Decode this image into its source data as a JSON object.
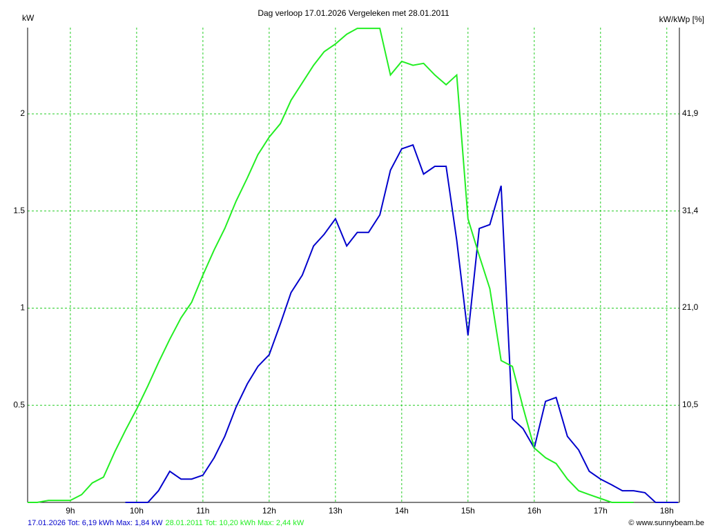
{
  "chart_data": {
    "type": "line",
    "title": "Dag  verloop 17.01.2026   Vergeleken met 28.01.2011",
    "y_label": "kW",
    "y2_label": "kW/kWp [%]",
    "credit": "© www.sunnybeam.be",
    "grid": true,
    "grid_color": "#22cc22",
    "xlim": [
      8.355,
      18.19
    ],
    "xticks": [
      {
        "value": 9,
        "label": "9h"
      },
      {
        "value": 10,
        "label": "10h"
      },
      {
        "value": 11,
        "label": "11h"
      },
      {
        "value": 12,
        "label": "12h"
      },
      {
        "value": 13,
        "label": "13h"
      },
      {
        "value": 14,
        "label": "14h"
      },
      {
        "value": 15,
        "label": "15h"
      },
      {
        "value": 16,
        "label": "16h"
      },
      {
        "value": 17,
        "label": "17h"
      },
      {
        "value": 18,
        "label": "18h"
      }
    ],
    "ylim": [
      0,
      2.444
    ],
    "yticks": [
      0.5,
      1,
      1.5,
      2
    ],
    "y2lim": [
      0,
      51.2
    ],
    "y2ticks": [
      {
        "value": 10.5,
        "label": "10,5"
      },
      {
        "value": 21.0,
        "label": "21,0"
      },
      {
        "value": 31.4,
        "label": "31,4"
      },
      {
        "value": 41.9,
        "label": "41,9"
      }
    ],
    "series": [
      {
        "name": "17.01.2026 Tot: 6,19 kWh Max: 1,84 kW",
        "color": "#0000cc",
        "x": [
          9.83,
          10.0,
          10.17,
          10.33,
          10.5,
          10.67,
          10.83,
          11.0,
          11.17,
          11.33,
          11.5,
          11.67,
          11.83,
          12.0,
          12.17,
          12.33,
          12.5,
          12.67,
          12.83,
          13.0,
          13.17,
          13.33,
          13.5,
          13.67,
          13.83,
          14.0,
          14.17,
          14.33,
          14.5,
          14.67,
          14.83,
          15.0,
          15.17,
          15.33,
          15.5,
          15.67,
          15.83,
          16.0,
          16.17,
          16.33,
          16.5,
          16.67,
          16.83,
          17.0,
          17.17,
          17.33,
          17.5,
          17.67,
          17.83,
          18.17
        ],
        "values": [
          0,
          0,
          0,
          0.06,
          0.16,
          0.12,
          0.12,
          0.14,
          0.23,
          0.34,
          0.49,
          0.61,
          0.7,
          0.76,
          0.92,
          1.08,
          1.17,
          1.32,
          1.38,
          1.46,
          1.32,
          1.39,
          1.39,
          1.48,
          1.71,
          1.82,
          1.84,
          1.69,
          1.73,
          1.73,
          1.35,
          0.86,
          1.41,
          1.43,
          1.63,
          0.43,
          0.38,
          0.28,
          0.52,
          0.54,
          0.34,
          0.27,
          0.16,
          0.12,
          0.09,
          0.06,
          0.06,
          0.05,
          0,
          0
        ]
      },
      {
        "name": "28.01.2011 Tot: 10,20 kWh Max: 2,44 kW",
        "color": "#22ee22",
        "x": [
          8.355,
          8.5,
          8.67,
          8.83,
          9.0,
          9.17,
          9.33,
          9.5,
          9.67,
          9.83,
          10.0,
          10.17,
          10.33,
          10.5,
          10.67,
          10.83,
          11.0,
          11.17,
          11.33,
          11.5,
          11.67,
          11.83,
          12.0,
          12.17,
          12.33,
          12.5,
          12.67,
          12.83,
          13.0,
          13.17,
          13.33,
          13.5,
          13.67,
          13.83,
          14.0,
          14.17,
          14.33,
          14.5,
          14.67,
          14.83,
          15.0,
          15.17,
          15.33,
          15.5,
          15.67,
          15.83,
          16.0,
          16.17,
          16.33,
          16.5,
          16.67,
          16.83,
          17.0,
          17.17,
          17.33,
          17.5
        ],
        "values": [
          0,
          0,
          0.01,
          0.01,
          0.01,
          0.04,
          0.1,
          0.13,
          0.26,
          0.37,
          0.48,
          0.6,
          0.72,
          0.84,
          0.95,
          1.03,
          1.17,
          1.3,
          1.41,
          1.55,
          1.67,
          1.79,
          1.88,
          1.95,
          2.07,
          2.16,
          2.25,
          2.32,
          2.36,
          2.41,
          2.44,
          2.44,
          2.44,
          2.2,
          2.27,
          2.25,
          2.26,
          2.2,
          2.15,
          2.2,
          1.46,
          1.27,
          1.1,
          0.73,
          0.7,
          0.49,
          0.28,
          0.23,
          0.2,
          0.12,
          0.06,
          0.04,
          0.02,
          0,
          0,
          0
        ]
      }
    ]
  }
}
